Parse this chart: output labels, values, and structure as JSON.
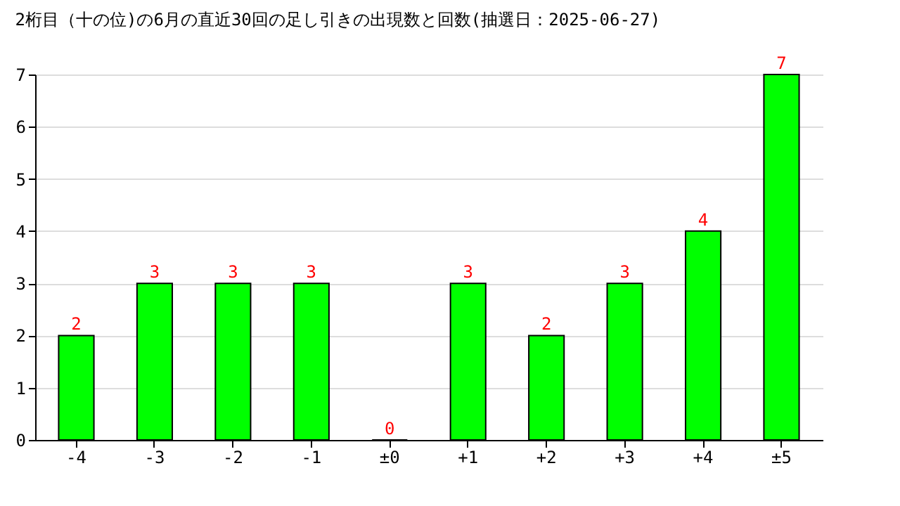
{
  "chart_data": {
    "type": "bar",
    "title": "2桁目（十の位)の6月の直近30回の足し引きの出現数と回数(抽選日：2025-06-27)",
    "categories": [
      "-4",
      "-3",
      "-2",
      "-1",
      "±0",
      "+1",
      "+2",
      "+3",
      "+4",
      "±5"
    ],
    "values": [
      2,
      3,
      3,
      3,
      0,
      3,
      2,
      3,
      4,
      7
    ],
    "color": "#00ff00",
    "ylim": [
      0,
      7
    ],
    "yticks": [
      0,
      1,
      2,
      3,
      4,
      5,
      6,
      7
    ],
    "grid": "y",
    "data_labels": true
  }
}
